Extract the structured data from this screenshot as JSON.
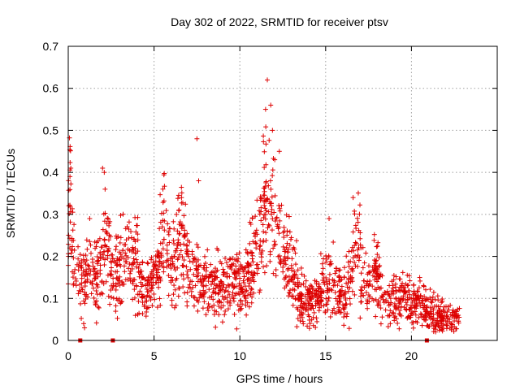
{
  "chart_data": {
    "type": "scatter",
    "title": "Day 302 of 2022, SRMTID for receiver ptsv",
    "xlabel": "GPS time / hours",
    "ylabel": "SRMTID / TECUs",
    "xlim": [
      0,
      25
    ],
    "ylim": [
      0,
      0.7
    ],
    "xticks": [
      0,
      5,
      10,
      15,
      20
    ],
    "yticks": [
      0,
      0.1,
      0.2,
      0.3,
      0.4,
      0.5,
      0.6,
      0.7
    ],
    "grid": true,
    "marker": "plus",
    "series": [
      {
        "name": "SRMTID",
        "color": "#dd0000",
        "profile_x": [
          0.0,
          0.1,
          0.2,
          0.4,
          0.8,
          1.2,
          1.6,
          2.0,
          2.2,
          2.6,
          3.0,
          3.4,
          3.8,
          4.1,
          4.4,
          4.8,
          5.2,
          5.6,
          6.0,
          6.5,
          7.0,
          7.6,
          8.2,
          8.8,
          9.4,
          10.0,
          10.4,
          10.8,
          11.1,
          11.4,
          11.7,
          12.0,
          12.3,
          12.6,
          13.0,
          13.5,
          14.0,
          14.5,
          15.0,
          15.5,
          16.0,
          16.4,
          16.8,
          17.2,
          17.6,
          18.0,
          18.5,
          19.0,
          19.5,
          20.0,
          20.5,
          21.0,
          21.5,
          22.0,
          22.5,
          22.8
        ],
        "profile_y": [
          0.22,
          0.36,
          0.22,
          0.15,
          0.14,
          0.16,
          0.15,
          0.18,
          0.23,
          0.15,
          0.18,
          0.2,
          0.19,
          0.17,
          0.12,
          0.12,
          0.16,
          0.26,
          0.15,
          0.25,
          0.18,
          0.14,
          0.13,
          0.12,
          0.14,
          0.13,
          0.14,
          0.19,
          0.26,
          0.32,
          0.34,
          0.3,
          0.24,
          0.2,
          0.17,
          0.1,
          0.09,
          0.1,
          0.15,
          0.13,
          0.1,
          0.12,
          0.26,
          0.13,
          0.12,
          0.16,
          0.09,
          0.09,
          0.11,
          0.08,
          0.09,
          0.07,
          0.06,
          0.05,
          0.05,
          0.05
        ],
        "spread": 0.045,
        "point_count": 1900,
        "outliers": [
          {
            "x": 11.6,
            "y": 0.62
          },
          {
            "x": 11.8,
            "y": 0.56
          },
          {
            "x": 11.5,
            "y": 0.55
          },
          {
            "x": 11.9,
            "y": 0.5
          },
          {
            "x": 7.5,
            "y": 0.48
          },
          {
            "x": 12.3,
            "y": 0.45
          },
          {
            "x": 2.0,
            "y": 0.41
          },
          {
            "x": 2.1,
            "y": 0.4
          },
          {
            "x": 7.6,
            "y": 0.38
          },
          {
            "x": 0.15,
            "y": 0.41
          },
          {
            "x": 0.1,
            "y": 0.39
          },
          {
            "x": 1.25,
            "y": 0.29
          },
          {
            "x": 16.6,
            "y": 0.34
          },
          {
            "x": 6.6,
            "y": 0.34
          },
          {
            "x": 15.2,
            "y": 0.29
          },
          {
            "x": 0.9,
            "y": 0.04
          },
          {
            "x": 0.95,
            "y": 0.03
          }
        ],
        "markers_on_axis": [
          0.7,
          2.6,
          20.9
        ]
      }
    ]
  }
}
